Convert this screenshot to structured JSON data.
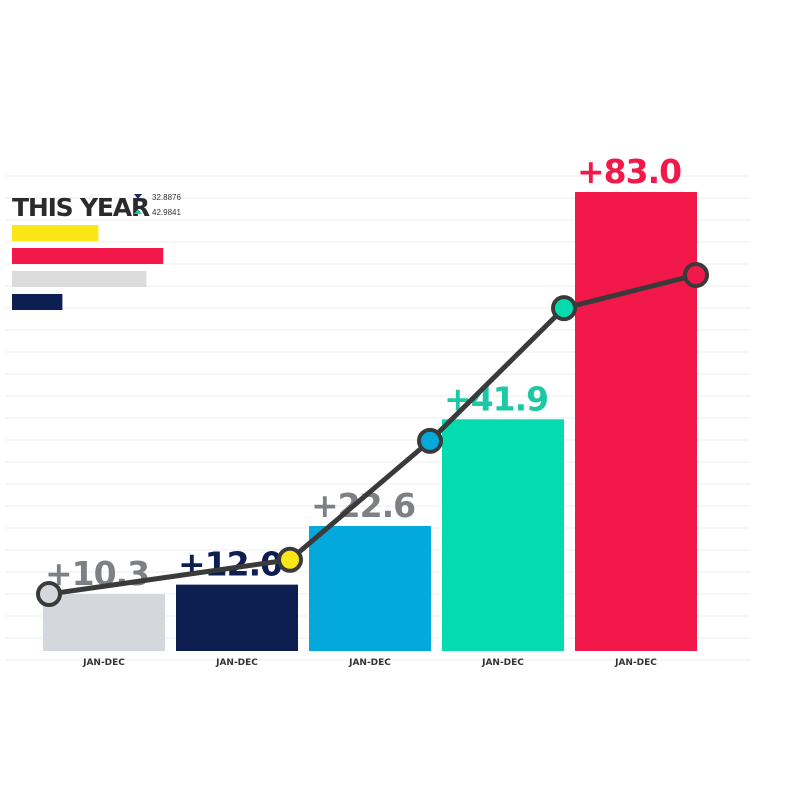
{
  "legend": {
    "title": "THIS YEAR",
    "stats": [
      {
        "marker": "down-triangle",
        "text": "32.8876",
        "color": "#1a2a5a"
      },
      {
        "marker": "up-triangle",
        "text": "42.9841",
        "color": "#1dc9a4"
      }
    ],
    "swatches": [
      {
        "color": "#fbe617",
        "value": 0.36
      },
      {
        "color": "#f2184a",
        "value": 0.63
      },
      {
        "color": "#dcdcdc",
        "value": 0.56
      },
      {
        "color": "#0d1f50",
        "value": 0.21
      }
    ]
  },
  "chart_data": {
    "type": "bar",
    "categories": [
      "JAN-DEC",
      "JAN-DEC",
      "JAN-DEC",
      "JAN-DEC",
      "JAN-DEC"
    ],
    "values": [
      10.3,
      12.0,
      22.6,
      41.9,
      83.0
    ],
    "value_labels": [
      "+10.3",
      "+12.0",
      "+22.6",
      "+41.9",
      "+83.0"
    ],
    "bar_colors": [
      "#d4d7db",
      "#0d1f50",
      "#04a9dc",
      "#04dcb0",
      "#f2184a"
    ],
    "label_colors": [
      "#7d8085",
      "#0d1f50",
      "#7d8085",
      "#1dc9a4",
      "#f2184a"
    ],
    "ylim": [
      0,
      100
    ],
    "grid": true,
    "overlay_line": {
      "values": [
        10.3,
        16.5,
        38.0,
        62.0,
        68.0
      ],
      "marker_colors": [
        "#d4d7db",
        "#fbe617",
        "#04a9dc",
        "#04dcb0",
        "#f2184a"
      ],
      "line_color": "#3a3a3a"
    }
  }
}
